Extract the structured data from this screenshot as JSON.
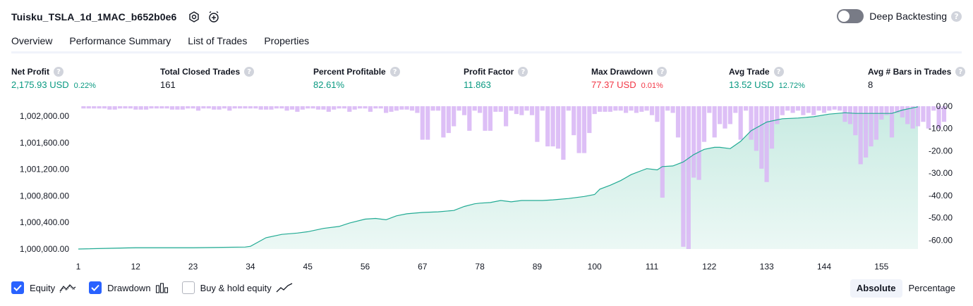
{
  "header": {
    "title": "Tuisku_TSLA_1d_1MAC_b652b0e6",
    "deep_label": "Deep Backtesting",
    "help_glyph": "?"
  },
  "tabs": [
    "Overview",
    "Performance Summary",
    "List of Trades",
    "Properties"
  ],
  "metrics": [
    {
      "label": "Net Profit",
      "value": "2,175.93 USD",
      "pct": "0.22%",
      "color": "green"
    },
    {
      "label": "Total Closed Trades",
      "value": "161",
      "pct": "",
      "color": "dark"
    },
    {
      "label": "Percent Profitable",
      "value": "82.61%",
      "pct": "",
      "color": "green"
    },
    {
      "label": "Profit Factor",
      "value": "11.863",
      "pct": "",
      "color": "green"
    },
    {
      "label": "Max Drawdown",
      "value": "77.37 USD",
      "pct": "0.01%",
      "color": "red"
    },
    {
      "label": "Avg Trade",
      "value": "13.52 USD",
      "pct": "12.72%",
      "color": "green"
    },
    {
      "label": "Avg # Bars in Trades",
      "value": "8",
      "pct": "",
      "color": "dark"
    }
  ],
  "legend": {
    "equity": "Equity",
    "drawdown": "Drawdown",
    "buyhold": "Buy & hold equity"
  },
  "switch": {
    "absolute": "Absolute",
    "percentage": "Percentage"
  },
  "colors": {
    "equity_line": "#22ab94",
    "equity_fill": "#c8ebe2",
    "drawdown_bar": "#d9b8f5",
    "accent": "#2962ff"
  },
  "chart_data": {
    "type": "area",
    "x_ticks": [
      1,
      12,
      23,
      34,
      45,
      56,
      67,
      78,
      89,
      100,
      111,
      122,
      133,
      144,
      155
    ],
    "equity_axis": {
      "ticks": [
        "1,002,000.00",
        "1,001,600.00",
        "1,001,200.00",
        "1,000,800.00",
        "1,000,400.00",
        "1,000,000.00"
      ],
      "tick_values": [
        1002000,
        1001600,
        1001200,
        1000800,
        1000400,
        1000000
      ],
      "range": [
        999980,
        1002180
      ]
    },
    "drawdown_axis": {
      "ticks": [
        "0.00",
        "-10.00",
        "-20.00",
        "-30.00",
        "-40.00",
        "-50.00",
        "-60.00"
      ],
      "tick_values": [
        0,
        -10,
        -20,
        -30,
        -40,
        -50,
        -60
      ],
      "range": [
        -65,
        0
      ]
    },
    "series": [
      {
        "name": "Equity",
        "x": [
          1,
          12,
          23,
          33,
          34,
          37,
          40,
          43,
          45,
          48,
          51,
          53,
          56,
          58,
          60,
          62,
          64,
          67,
          70,
          73,
          75,
          77,
          78,
          80,
          82,
          84,
          86,
          88,
          90,
          92,
          95,
          98,
          100,
          101,
          103,
          105,
          107,
          109,
          110,
          112,
          113,
          115,
          117,
          119,
          121,
          123,
          124,
          126,
          128,
          130,
          133,
          136,
          139,
          142,
          145,
          148,
          150,
          153,
          155,
          157,
          159,
          162
        ],
        "values": [
          1000000,
          1000020,
          1000020,
          1000030,
          1000040,
          1000170,
          1000220,
          1000240,
          1000260,
          1000310,
          1000340,
          1000390,
          1000450,
          1000460,
          1000440,
          1000500,
          1000530,
          1000550,
          1000560,
          1000580,
          1000640,
          1000680,
          1000690,
          1000700,
          1000730,
          1000710,
          1000730,
          1000730,
          1000730,
          1000740,
          1000760,
          1000790,
          1000820,
          1000900,
          1000960,
          1001030,
          1001120,
          1001180,
          1001210,
          1001190,
          1001240,
          1001250,
          1001310,
          1001420,
          1001500,
          1001530,
          1001530,
          1001510,
          1001620,
          1001780,
          1001910,
          1001960,
          1001970,
          1001990,
          1002030,
          1002050,
          1002040,
          1002040,
          1002040,
          1002040,
          1002090,
          1002140
        ]
      },
      {
        "name": "Drawdown",
        "values": [
          -1,
          -1,
          -1,
          -1,
          -1,
          -1.5,
          -1.5,
          -1,
          -1,
          -1,
          -1.5,
          -1.5,
          -1.5,
          -1,
          -1,
          -1,
          -1,
          -1.5,
          -1.5,
          -1.5,
          -1,
          -1,
          -2,
          -1,
          -1,
          -1.5,
          -1.5,
          -1,
          -2,
          -1,
          -1,
          -1,
          -1,
          -1,
          -1.5,
          -1.5,
          -1.5,
          -1,
          -1,
          -2,
          -1.5,
          -2.5,
          -1.5,
          -1,
          -1,
          -1.5,
          -1.5,
          -2.5,
          -1.5,
          -1,
          -1,
          -2.5,
          -1.5,
          -1,
          -1,
          -2.5,
          -1,
          -1,
          -3,
          -2.5,
          -2,
          -1.5,
          -1.5,
          -2,
          -3,
          -15,
          -15,
          -2,
          -2,
          -14,
          -12,
          -9,
          -2,
          -4,
          -11,
          -2,
          -3,
          -11,
          -11,
          -2.5,
          -2.5,
          -9,
          -2,
          -3.5,
          -4,
          -2,
          -4,
          -16,
          -2,
          -18,
          -18,
          -19,
          -24,
          -2,
          -13,
          -21,
          -21,
          -12,
          -3.5,
          -2.5,
          -2.5,
          -2.5,
          -2,
          -2,
          -3,
          -2,
          -3,
          -2.5,
          -2,
          -4,
          -7,
          -41,
          -2,
          -3,
          -14,
          -63,
          -64,
          -32,
          -33,
          -16,
          -3,
          -14,
          -8,
          -10,
          -8,
          -3,
          -15,
          -2,
          -15,
          -20,
          -28,
          -34,
          -19,
          -8,
          -4,
          -2,
          -3,
          -2,
          -4,
          -3,
          -4,
          -2,
          -3,
          -2,
          -1.5,
          -2,
          -7,
          -8,
          -13,
          -26,
          -23,
          -18,
          -15,
          -6,
          -4,
          -14,
          -3,
          -5,
          -8,
          -10,
          -9,
          -7,
          -10,
          -2,
          -10,
          -7
        ]
      }
    ]
  }
}
